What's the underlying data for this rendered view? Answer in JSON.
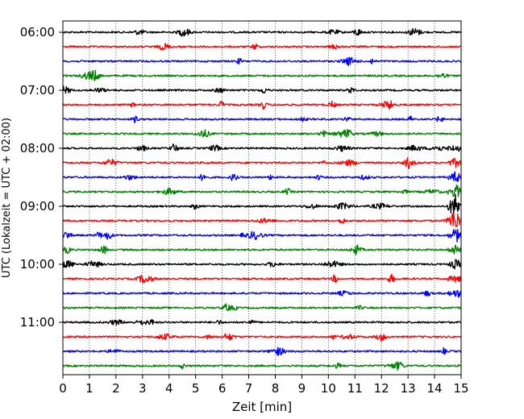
{
  "chart_data": {
    "type": "line",
    "title": "",
    "xlabel": "Zeit  [min]",
    "ylabel": "UTC (Lokalzeit = UTC + 02:00)",
    "xlim": [
      0,
      15
    ],
    "x_ticks": [
      0,
      1,
      2,
      3,
      4,
      5,
      6,
      7,
      8,
      9,
      10,
      11,
      12,
      13,
      14,
      15
    ],
    "y_tick_labels": [
      "06:00",
      "07:00",
      "08:00",
      "09:00",
      "10:00",
      "11:00"
    ],
    "grid": "vertical dotted",
    "trace_interval_min": 15,
    "trace_colors": [
      "#000000",
      "#ff0000",
      "#0000ff",
      "#008000"
    ],
    "traces": [
      {
        "start": "06:00",
        "color": "#000000"
      },
      {
        "start": "06:15",
        "color": "#ff0000"
      },
      {
        "start": "06:30",
        "color": "#0000ff"
      },
      {
        "start": "06:45",
        "color": "#008000"
      },
      {
        "start": "07:00",
        "color": "#000000"
      },
      {
        "start": "07:15",
        "color": "#ff0000"
      },
      {
        "start": "07:30",
        "color": "#0000ff"
      },
      {
        "start": "07:45",
        "color": "#008000"
      },
      {
        "start": "08:00",
        "color": "#000000"
      },
      {
        "start": "08:15",
        "color": "#ff0000"
      },
      {
        "start": "08:30",
        "color": "#0000ff"
      },
      {
        "start": "08:45",
        "color": "#008000"
      },
      {
        "start": "09:00",
        "color": "#000000"
      },
      {
        "start": "09:15",
        "color": "#ff0000"
      },
      {
        "start": "09:30",
        "color": "#0000ff"
      },
      {
        "start": "09:45",
        "color": "#008000"
      },
      {
        "start": "10:00",
        "color": "#000000"
      },
      {
        "start": "10:15",
        "color": "#ff0000"
      },
      {
        "start": "10:30",
        "color": "#0000ff"
      },
      {
        "start": "10:45",
        "color": "#008000"
      },
      {
        "start": "11:00",
        "color": "#000000"
      },
      {
        "start": "11:15",
        "color": "#ff0000"
      },
      {
        "start": "11:30",
        "color": "#0000ff"
      },
      {
        "start": "11:45",
        "color": "#008000"
      }
    ],
    "event": {
      "start_min": 14.5,
      "end_min": 15.0,
      "first_trace": "08:00",
      "last_trace": "10:15"
    }
  }
}
